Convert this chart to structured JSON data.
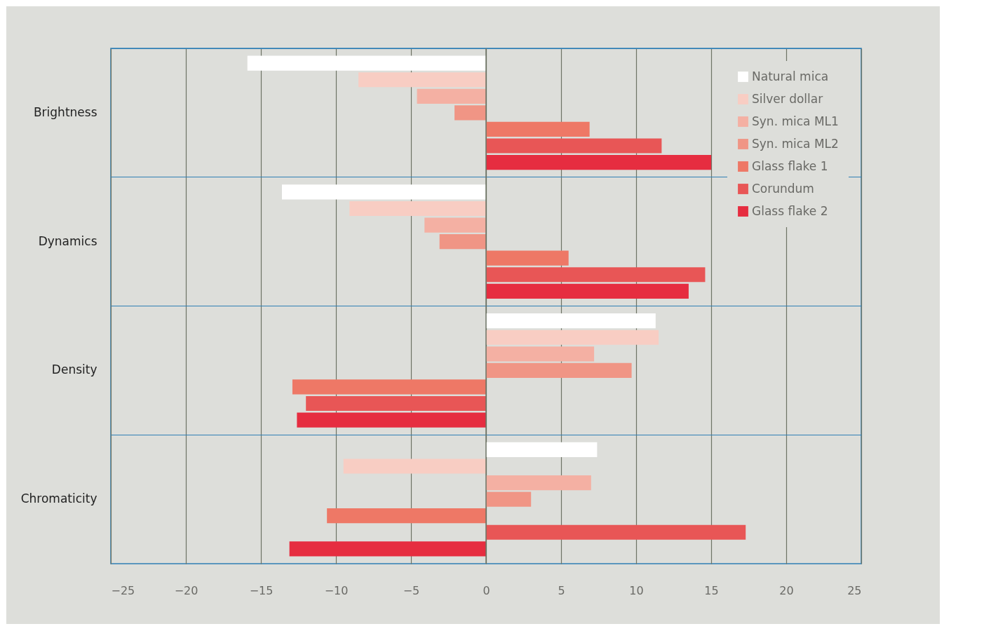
{
  "chart_data": {
    "type": "bar",
    "orientation": "horizontal",
    "categories": [
      "Brightness",
      "Dynamics",
      "Density",
      "Chromaticity"
    ],
    "series": [
      {
        "name": "Natural mica",
        "color": "#ffffff",
        "values": [
          -15.9,
          -13.6,
          11.3,
          7.4
        ]
      },
      {
        "name": "Silver dollar",
        "color": "#f8cdc3",
        "values": [
          -8.5,
          -9.1,
          11.5,
          -9.5
        ]
      },
      {
        "name": "Syn. mica ML1",
        "color": "#f4b0a3",
        "values": [
          -4.6,
          -4.1,
          7.2,
          7.0
        ]
      },
      {
        "name": "Syn. mica ML2",
        "color": "#f09585",
        "values": [
          -2.1,
          -3.1,
          9.7,
          3.0
        ]
      },
      {
        "name": "Glass flake 1",
        "color": "#ee7866",
        "values": [
          6.9,
          5.5,
          -12.9,
          -10.6
        ]
      },
      {
        "name": "Corundum",
        "color": "#e85656",
        "values": [
          11.7,
          14.6,
          -12.0,
          17.3
        ]
      },
      {
        "name": "Glass flake 2",
        "color": "#e62d40",
        "values": [
          15.0,
          13.5,
          -12.6,
          -13.1
        ]
      }
    ],
    "xlim": [
      -25,
      25
    ],
    "xticks": [
      -25,
      -20,
      -15,
      -10,
      -5,
      0,
      5,
      10,
      15,
      20,
      25
    ],
    "grid": true,
    "legend": "top right"
  }
}
